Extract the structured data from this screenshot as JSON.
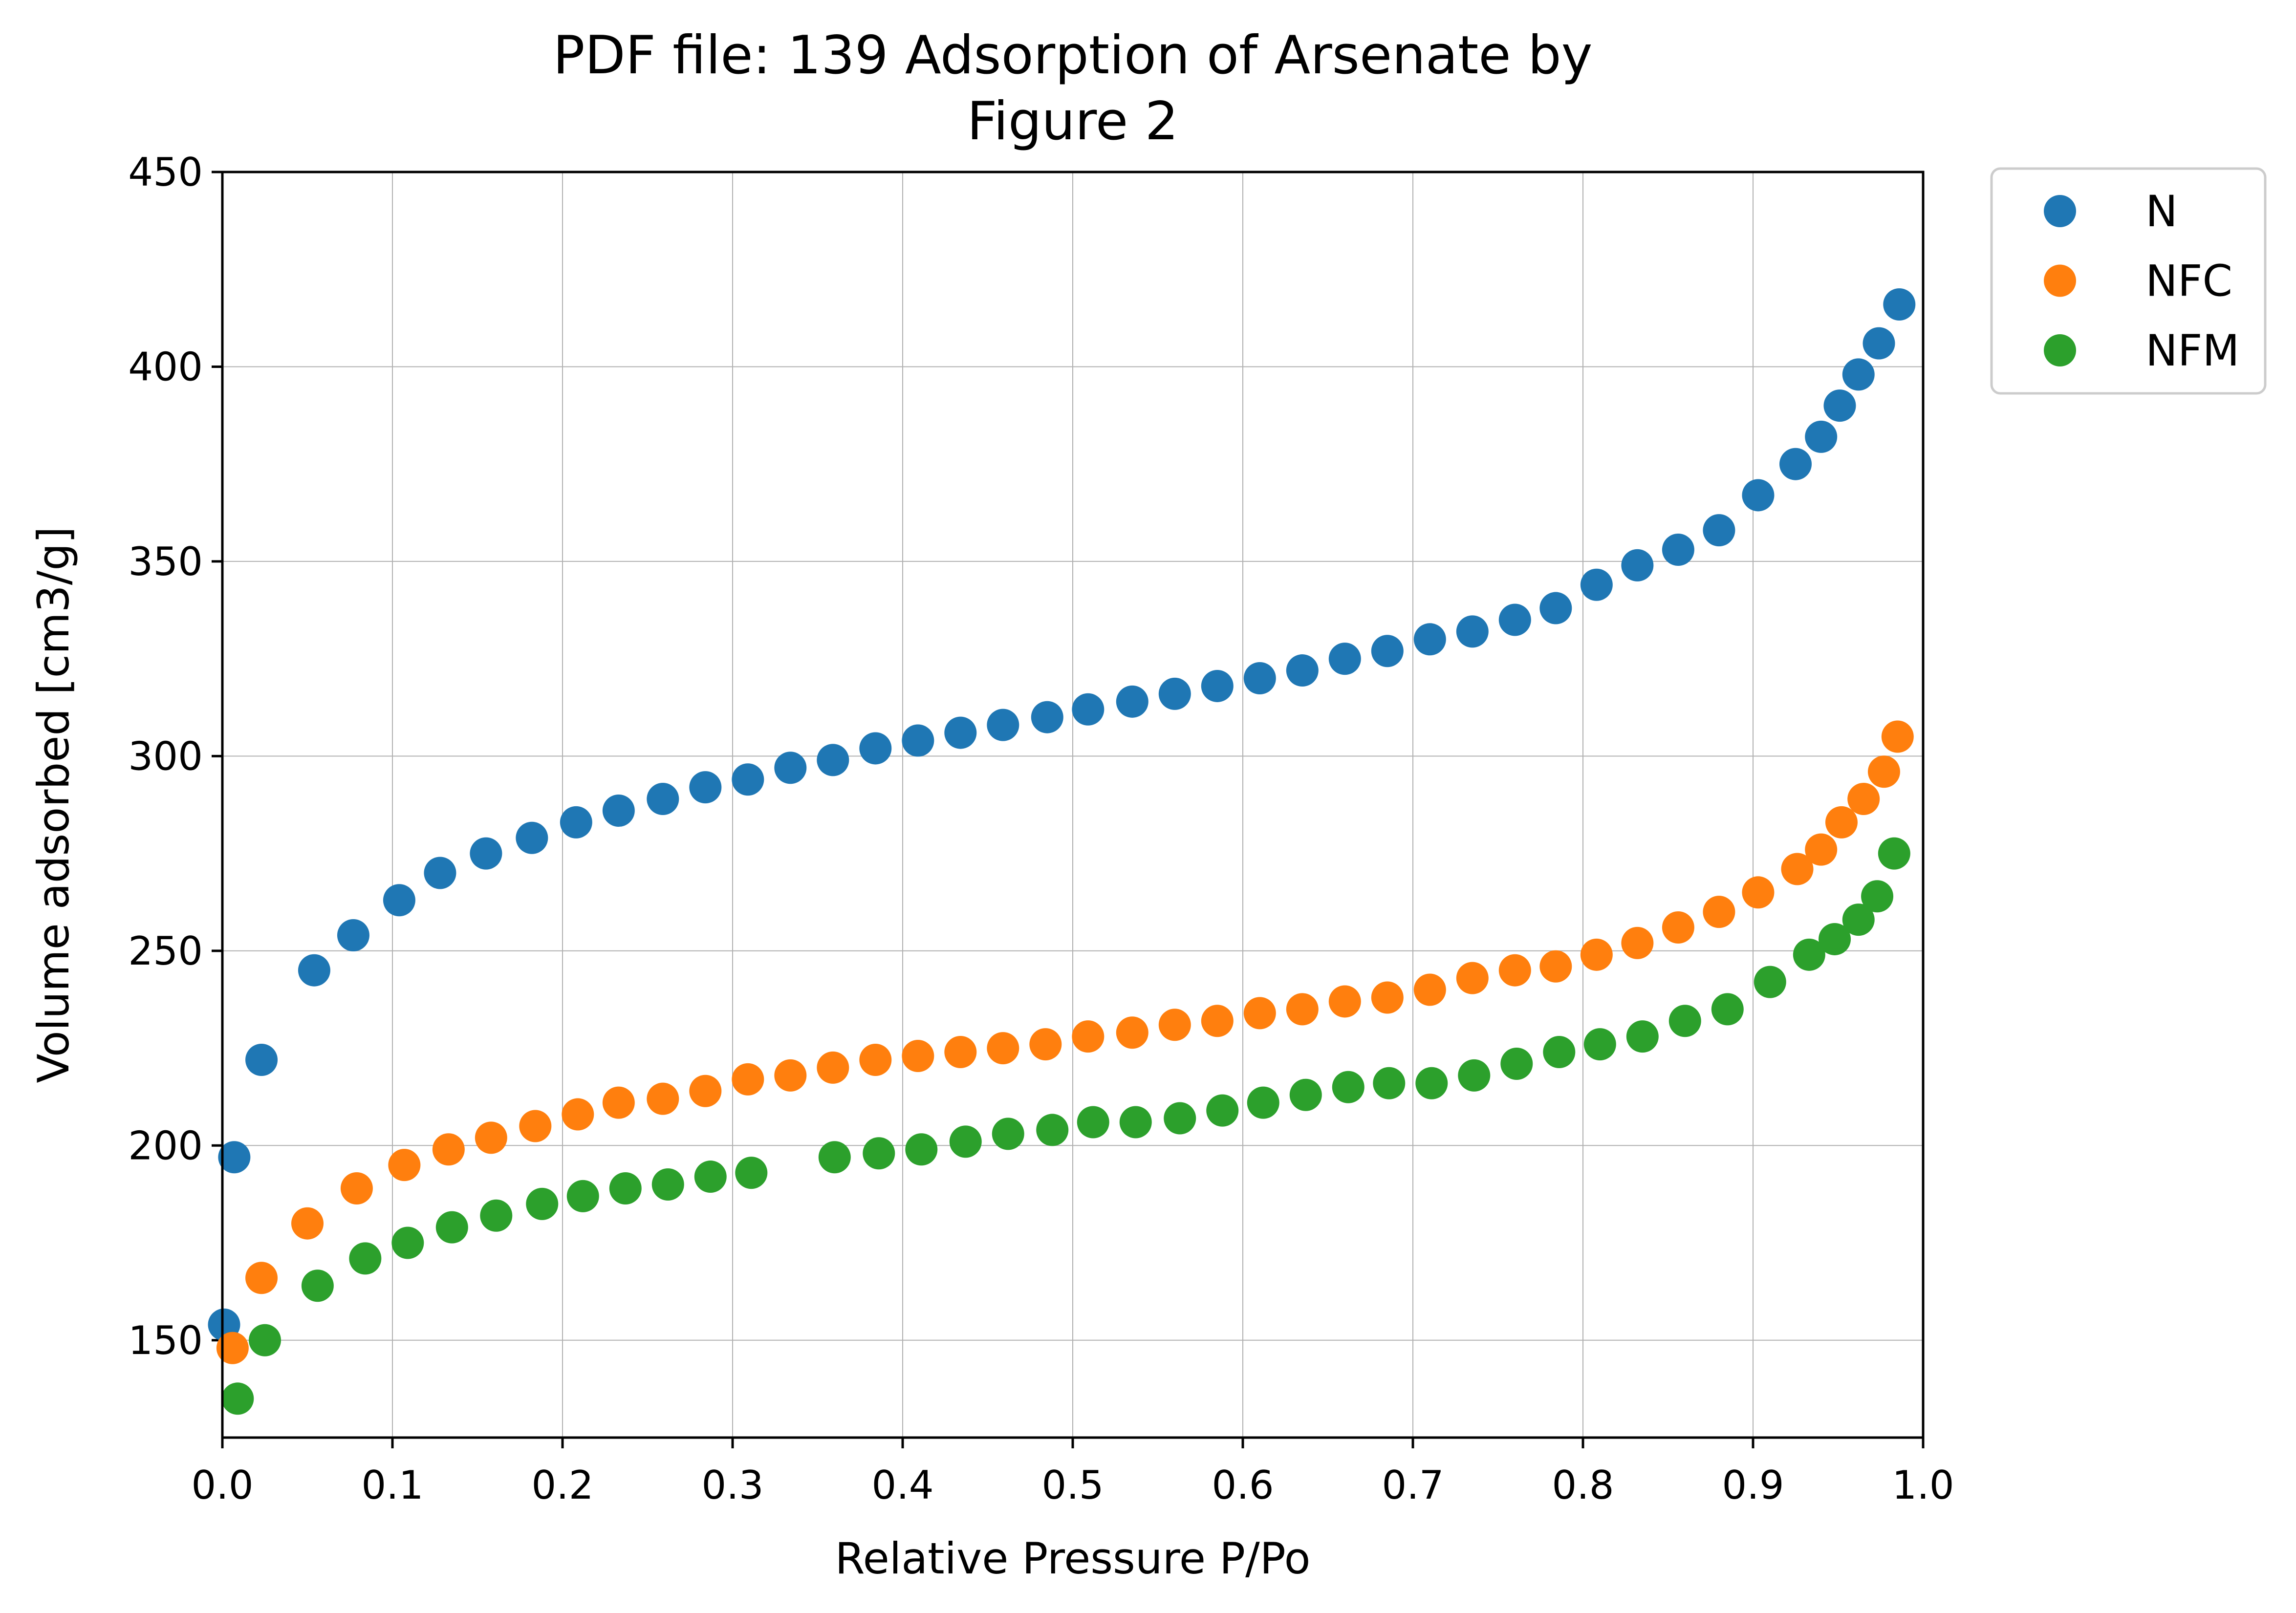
{
  "chart_data": {
    "type": "scatter",
    "title": "PDF file: 139 Adsorption of Arsenate by",
    "subtitle": "Figure 2",
    "xlabel": "Relative Pressure P/Po",
    "ylabel": "Volume adsorbed [cm3/g]",
    "xlim": [
      0.0,
      1.0
    ],
    "ylim": [
      125,
      450
    ],
    "xticks": [
      "0.0",
      "0.1",
      "0.2",
      "0.3",
      "0.4",
      "0.5",
      "0.6",
      "0.7",
      "0.8",
      "0.9",
      "1.0"
    ],
    "yticks": [
      "150",
      "200",
      "250",
      "300",
      "350",
      "400",
      "450"
    ],
    "grid": true,
    "legend_position": "outside-top-right",
    "series": [
      {
        "name": "N",
        "color": "#1f77b4",
        "x": [
          0.001,
          0.007,
          0.023,
          0.054,
          0.077,
          0.104,
          0.128,
          0.155,
          0.182,
          0.208,
          0.233,
          0.259,
          0.284,
          0.309,
          0.334,
          0.359,
          0.384,
          0.409,
          0.434,
          0.459,
          0.485,
          0.509,
          0.535,
          0.56,
          0.585,
          0.61,
          0.635,
          0.66,
          0.685,
          0.71,
          0.735,
          0.76,
          0.784,
          0.808,
          0.832,
          0.856,
          0.88,
          0.903,
          0.925,
          0.94,
          0.951,
          0.962,
          0.974,
          0.986
        ],
        "y": [
          154,
          197,
          222,
          245,
          254,
          263,
          270,
          275,
          279,
          283,
          286,
          289,
          292,
          294,
          297,
          299,
          302,
          304,
          306,
          308,
          310,
          312,
          314,
          316,
          318,
          320,
          322,
          325,
          327,
          330,
          332,
          335,
          338,
          344,
          349,
          353,
          358,
          367,
          375,
          382,
          390,
          398,
          406,
          416
        ]
      },
      {
        "name": "NFC",
        "color": "#ff7f0e",
        "x": [
          0.006,
          0.023,
          0.05,
          0.079,
          0.107,
          0.133,
          0.158,
          0.184,
          0.209,
          0.233,
          0.259,
          0.284,
          0.309,
          0.334,
          0.359,
          0.384,
          0.409,
          0.434,
          0.459,
          0.484,
          0.509,
          0.535,
          0.56,
          0.585,
          0.61,
          0.635,
          0.66,
          0.685,
          0.71,
          0.735,
          0.76,
          0.784,
          0.808,
          0.832,
          0.856,
          0.88,
          0.903,
          0.926,
          0.94,
          0.952,
          0.965,
          0.977,
          0.985
        ],
        "y": [
          148,
          166,
          180,
          189,
          195,
          199,
          202,
          205,
          208,
          211,
          212,
          214,
          217,
          218,
          220,
          222,
          223,
          224,
          225,
          226,
          228,
          229,
          231,
          232,
          234,
          235,
          237,
          238,
          240,
          243,
          245,
          246,
          249,
          252,
          256,
          260,
          265,
          271,
          276,
          283,
          289,
          296,
          305
        ]
      },
      {
        "name": "NFM",
        "color": "#2ca02c",
        "x": [
          0.009,
          0.025,
          0.056,
          0.084,
          0.109,
          0.135,
          0.161,
          0.188,
          0.212,
          0.237,
          0.262,
          0.287,
          0.311,
          0.36,
          0.386,
          0.411,
          0.437,
          0.462,
          0.488,
          0.512,
          0.537,
          0.563,
          0.588,
          0.612,
          0.637,
          0.662,
          0.686,
          0.711,
          0.736,
          0.761,
          0.786,
          0.81,
          0.835,
          0.86,
          0.885,
          0.91,
          0.933,
          0.948,
          0.962,
          0.973,
          0.983
        ],
        "y": [
          135,
          150,
          164,
          171,
          175,
          179,
          182,
          185,
          187,
          189,
          190,
          192,
          193,
          197,
          198,
          199,
          201,
          203,
          204,
          206,
          206,
          207,
          209,
          211,
          213,
          215,
          216,
          216,
          218,
          221,
          224,
          226,
          228,
          232,
          235,
          242,
          249,
          253,
          258,
          264,
          275
        ]
      }
    ]
  }
}
